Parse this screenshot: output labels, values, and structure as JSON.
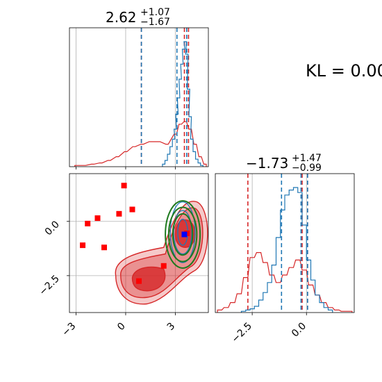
{
  "chart_data": [
    {
      "panel": "marginal-x",
      "type": "histogram",
      "title": {
        "value": "2.62",
        "upper": "+1.07",
        "lower": "−1.67"
      },
      "xlim": [
        -3.4,
        5.0
      ],
      "series": [
        {
          "name": "",
          "color": "#1f77b4",
          "quantiles": [
            0.95,
            3.1,
            3.69
          ],
          "bins": [
            [
              2.3,
              0.02
            ],
            [
              2.45,
              0.05
            ],
            [
              2.6,
              0.1
            ],
            [
              2.75,
              0.16
            ],
            [
              2.9,
              0.22
            ],
            [
              3.0,
              0.3
            ],
            [
              3.1,
              0.42
            ],
            [
              3.2,
              0.55
            ],
            [
              3.3,
              0.7
            ],
            [
              3.4,
              0.82
            ],
            [
              3.5,
              0.94
            ],
            [
              3.6,
              1.0
            ],
            [
              3.7,
              0.9
            ],
            [
              3.8,
              0.62
            ],
            [
              3.9,
              0.4
            ],
            [
              4.0,
              0.22
            ],
            [
              4.15,
              0.12
            ],
            [
              4.3,
              0.06
            ],
            [
              4.45,
              0.03
            ],
            [
              4.6,
              0.01
            ]
          ]
        },
        {
          "name": "",
          "color": "#d62728",
          "quantiles": [
            0.95,
            3.55,
            3.8
          ],
          "bins": [
            [
              -3.0,
              0.01
            ],
            [
              -2.5,
              0.01
            ],
            [
              -2.0,
              0.02
            ],
            [
              -1.5,
              0.03
            ],
            [
              -1.0,
              0.05
            ],
            [
              -0.5,
              0.08
            ],
            [
              0.0,
              0.12
            ],
            [
              0.5,
              0.16
            ],
            [
              1.0,
              0.18
            ],
            [
              1.5,
              0.2
            ],
            [
              2.0,
              0.2
            ],
            [
              2.5,
              0.18
            ],
            [
              3.0,
              0.26
            ],
            [
              3.3,
              0.34
            ],
            [
              3.6,
              0.36
            ],
            [
              3.9,
              0.3
            ],
            [
              4.2,
              0.18
            ],
            [
              4.5,
              0.08
            ],
            [
              4.8,
              0.02
            ]
          ]
        }
      ]
    },
    {
      "panel": "joint",
      "type": "scatter",
      "xlim": [
        -3.4,
        5.0
      ],
      "ylim": [
        -4.2,
        2.2
      ],
      "xticks": [
        "−3",
        "0",
        "3"
      ],
      "yticks": [
        "0.0",
        "−2.5"
      ],
      "points_red": [
        [
          -2.6,
          -1.1
        ],
        [
          -2.3,
          -0.1
        ],
        [
          -1.7,
          0.15
        ],
        [
          -1.3,
          -1.2
        ],
        [
          -0.4,
          0.35
        ],
        [
          -0.1,
          1.65
        ],
        [
          0.4,
          0.55
        ],
        [
          0.8,
          -2.75
        ],
        [
          2.3,
          -2.05
        ],
        [
          3.7,
          -0.55
        ]
      ],
      "point_blue": [
        3.55,
        -0.6
      ]
    },
    {
      "panel": "marginal-y",
      "type": "histogram",
      "title": {
        "value": "−1.73",
        "upper": "+1.47",
        "lower": "−0.99"
      },
      "xlim": [
        -4.2,
        2.2
      ],
      "xticks": [
        "−2.5",
        "0.0"
      ],
      "series": [
        {
          "name": "",
          "color": "#1f77b4",
          "quantiles": [
            -1.15,
            -0.25,
            0.05
          ],
          "bins": [
            [
              -2.9,
              0.01
            ],
            [
              -2.7,
              0.02
            ],
            [
              -2.5,
              0.03
            ],
            [
              -2.3,
              0.05
            ],
            [
              -2.1,
              0.1
            ],
            [
              -1.9,
              0.16
            ],
            [
              -1.7,
              0.24
            ],
            [
              -1.5,
              0.38
            ],
            [
              -1.3,
              0.6
            ],
            [
              -1.1,
              0.82
            ],
            [
              -0.9,
              0.94
            ],
            [
              -0.7,
              0.98
            ],
            [
              -0.5,
              1.0
            ],
            [
              -0.3,
              0.96
            ],
            [
              -0.1,
              0.7
            ],
            [
              0.1,
              0.42
            ],
            [
              0.3,
              0.26
            ],
            [
              0.5,
              0.14
            ],
            [
              0.7,
              0.08
            ],
            [
              0.9,
              0.04
            ],
            [
              1.1,
              0.02
            ]
          ]
        },
        {
          "name": "",
          "color": "#d62728",
          "quantiles": [
            -2.7,
            -0.2,
            0.05
          ],
          "bins": [
            [
              -4.0,
              0.02
            ],
            [
              -3.7,
              0.04
            ],
            [
              -3.4,
              0.08
            ],
            [
              -3.1,
              0.15
            ],
            [
              -2.8,
              0.28
            ],
            [
              -2.5,
              0.44
            ],
            [
              -2.2,
              0.48
            ],
            [
              -1.9,
              0.4
            ],
            [
              -1.6,
              0.3
            ],
            [
              -1.3,
              0.24
            ],
            [
              -1.0,
              0.3
            ],
            [
              -0.7,
              0.36
            ],
            [
              -0.4,
              0.42
            ],
            [
              -0.1,
              0.34
            ],
            [
              0.2,
              0.22
            ],
            [
              0.5,
              0.14
            ],
            [
              0.8,
              0.08
            ],
            [
              1.1,
              0.04
            ],
            [
              1.4,
              0.02
            ],
            [
              1.7,
              0.01
            ],
            [
              2.0,
              0.01
            ]
          ]
        }
      ]
    }
  ],
  "annotation": "KL = 0.00"
}
